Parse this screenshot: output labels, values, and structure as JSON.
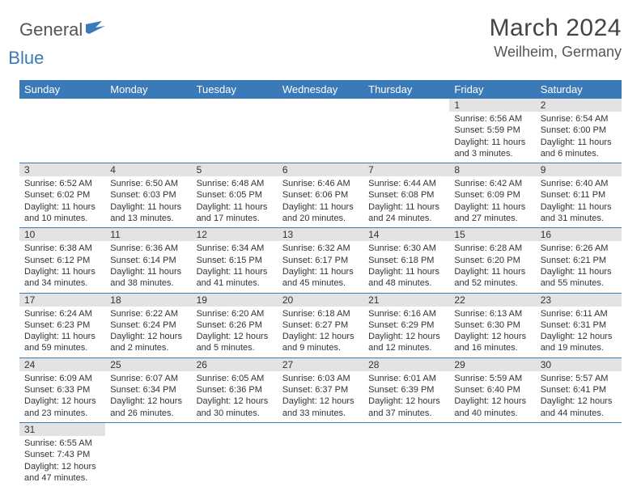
{
  "logo": {
    "part1": "General",
    "part2": "Blue"
  },
  "title": {
    "month": "March 2024",
    "location": "Weilheim, Germany"
  },
  "colors": {
    "header_bg": "#3a7ab8",
    "header_fg": "#ffffff",
    "daynum_bg": "#e3e3e3",
    "border": "#3a7ab8",
    "logo_gray": "#555555",
    "logo_blue": "#3a7ab8"
  },
  "day_headers": [
    "Sunday",
    "Monday",
    "Tuesday",
    "Wednesday",
    "Thursday",
    "Friday",
    "Saturday"
  ],
  "weeks": [
    [
      {
        "empty": true
      },
      {
        "empty": true
      },
      {
        "empty": true
      },
      {
        "empty": true
      },
      {
        "empty": true
      },
      {
        "n": "1",
        "sr": "6:56 AM",
        "ss": "5:59 PM",
        "dl": "11 hours and 3 minutes."
      },
      {
        "n": "2",
        "sr": "6:54 AM",
        "ss": "6:00 PM",
        "dl": "11 hours and 6 minutes."
      }
    ],
    [
      {
        "n": "3",
        "sr": "6:52 AM",
        "ss": "6:02 PM",
        "dl": "11 hours and 10 minutes."
      },
      {
        "n": "4",
        "sr": "6:50 AM",
        "ss": "6:03 PM",
        "dl": "11 hours and 13 minutes."
      },
      {
        "n": "5",
        "sr": "6:48 AM",
        "ss": "6:05 PM",
        "dl": "11 hours and 17 minutes."
      },
      {
        "n": "6",
        "sr": "6:46 AM",
        "ss": "6:06 PM",
        "dl": "11 hours and 20 minutes."
      },
      {
        "n": "7",
        "sr": "6:44 AM",
        "ss": "6:08 PM",
        "dl": "11 hours and 24 minutes."
      },
      {
        "n": "8",
        "sr": "6:42 AM",
        "ss": "6:09 PM",
        "dl": "11 hours and 27 minutes."
      },
      {
        "n": "9",
        "sr": "6:40 AM",
        "ss": "6:11 PM",
        "dl": "11 hours and 31 minutes."
      }
    ],
    [
      {
        "n": "10",
        "sr": "6:38 AM",
        "ss": "6:12 PM",
        "dl": "11 hours and 34 minutes."
      },
      {
        "n": "11",
        "sr": "6:36 AM",
        "ss": "6:14 PM",
        "dl": "11 hours and 38 minutes."
      },
      {
        "n": "12",
        "sr": "6:34 AM",
        "ss": "6:15 PM",
        "dl": "11 hours and 41 minutes."
      },
      {
        "n": "13",
        "sr": "6:32 AM",
        "ss": "6:17 PM",
        "dl": "11 hours and 45 minutes."
      },
      {
        "n": "14",
        "sr": "6:30 AM",
        "ss": "6:18 PM",
        "dl": "11 hours and 48 minutes."
      },
      {
        "n": "15",
        "sr": "6:28 AM",
        "ss": "6:20 PM",
        "dl": "11 hours and 52 minutes."
      },
      {
        "n": "16",
        "sr": "6:26 AM",
        "ss": "6:21 PM",
        "dl": "11 hours and 55 minutes."
      }
    ],
    [
      {
        "n": "17",
        "sr": "6:24 AM",
        "ss": "6:23 PM",
        "dl": "11 hours and 59 minutes."
      },
      {
        "n": "18",
        "sr": "6:22 AM",
        "ss": "6:24 PM",
        "dl": "12 hours and 2 minutes."
      },
      {
        "n": "19",
        "sr": "6:20 AM",
        "ss": "6:26 PM",
        "dl": "12 hours and 5 minutes."
      },
      {
        "n": "20",
        "sr": "6:18 AM",
        "ss": "6:27 PM",
        "dl": "12 hours and 9 minutes."
      },
      {
        "n": "21",
        "sr": "6:16 AM",
        "ss": "6:29 PM",
        "dl": "12 hours and 12 minutes."
      },
      {
        "n": "22",
        "sr": "6:13 AM",
        "ss": "6:30 PM",
        "dl": "12 hours and 16 minutes."
      },
      {
        "n": "23",
        "sr": "6:11 AM",
        "ss": "6:31 PM",
        "dl": "12 hours and 19 minutes."
      }
    ],
    [
      {
        "n": "24",
        "sr": "6:09 AM",
        "ss": "6:33 PM",
        "dl": "12 hours and 23 minutes."
      },
      {
        "n": "25",
        "sr": "6:07 AM",
        "ss": "6:34 PM",
        "dl": "12 hours and 26 minutes."
      },
      {
        "n": "26",
        "sr": "6:05 AM",
        "ss": "6:36 PM",
        "dl": "12 hours and 30 minutes."
      },
      {
        "n": "27",
        "sr": "6:03 AM",
        "ss": "6:37 PM",
        "dl": "12 hours and 33 minutes."
      },
      {
        "n": "28",
        "sr": "6:01 AM",
        "ss": "6:39 PM",
        "dl": "12 hours and 37 minutes."
      },
      {
        "n": "29",
        "sr": "5:59 AM",
        "ss": "6:40 PM",
        "dl": "12 hours and 40 minutes."
      },
      {
        "n": "30",
        "sr": "5:57 AM",
        "ss": "6:41 PM",
        "dl": "12 hours and 44 minutes."
      }
    ],
    [
      {
        "n": "31",
        "sr": "6:55 AM",
        "ss": "7:43 PM",
        "dl": "12 hours and 47 minutes."
      },
      {
        "empty": true
      },
      {
        "empty": true
      },
      {
        "empty": true
      },
      {
        "empty": true
      },
      {
        "empty": true
      },
      {
        "empty": true
      }
    ]
  ],
  "labels": {
    "sunrise": "Sunrise: ",
    "sunset": "Sunset: ",
    "daylight": "Daylight: "
  }
}
